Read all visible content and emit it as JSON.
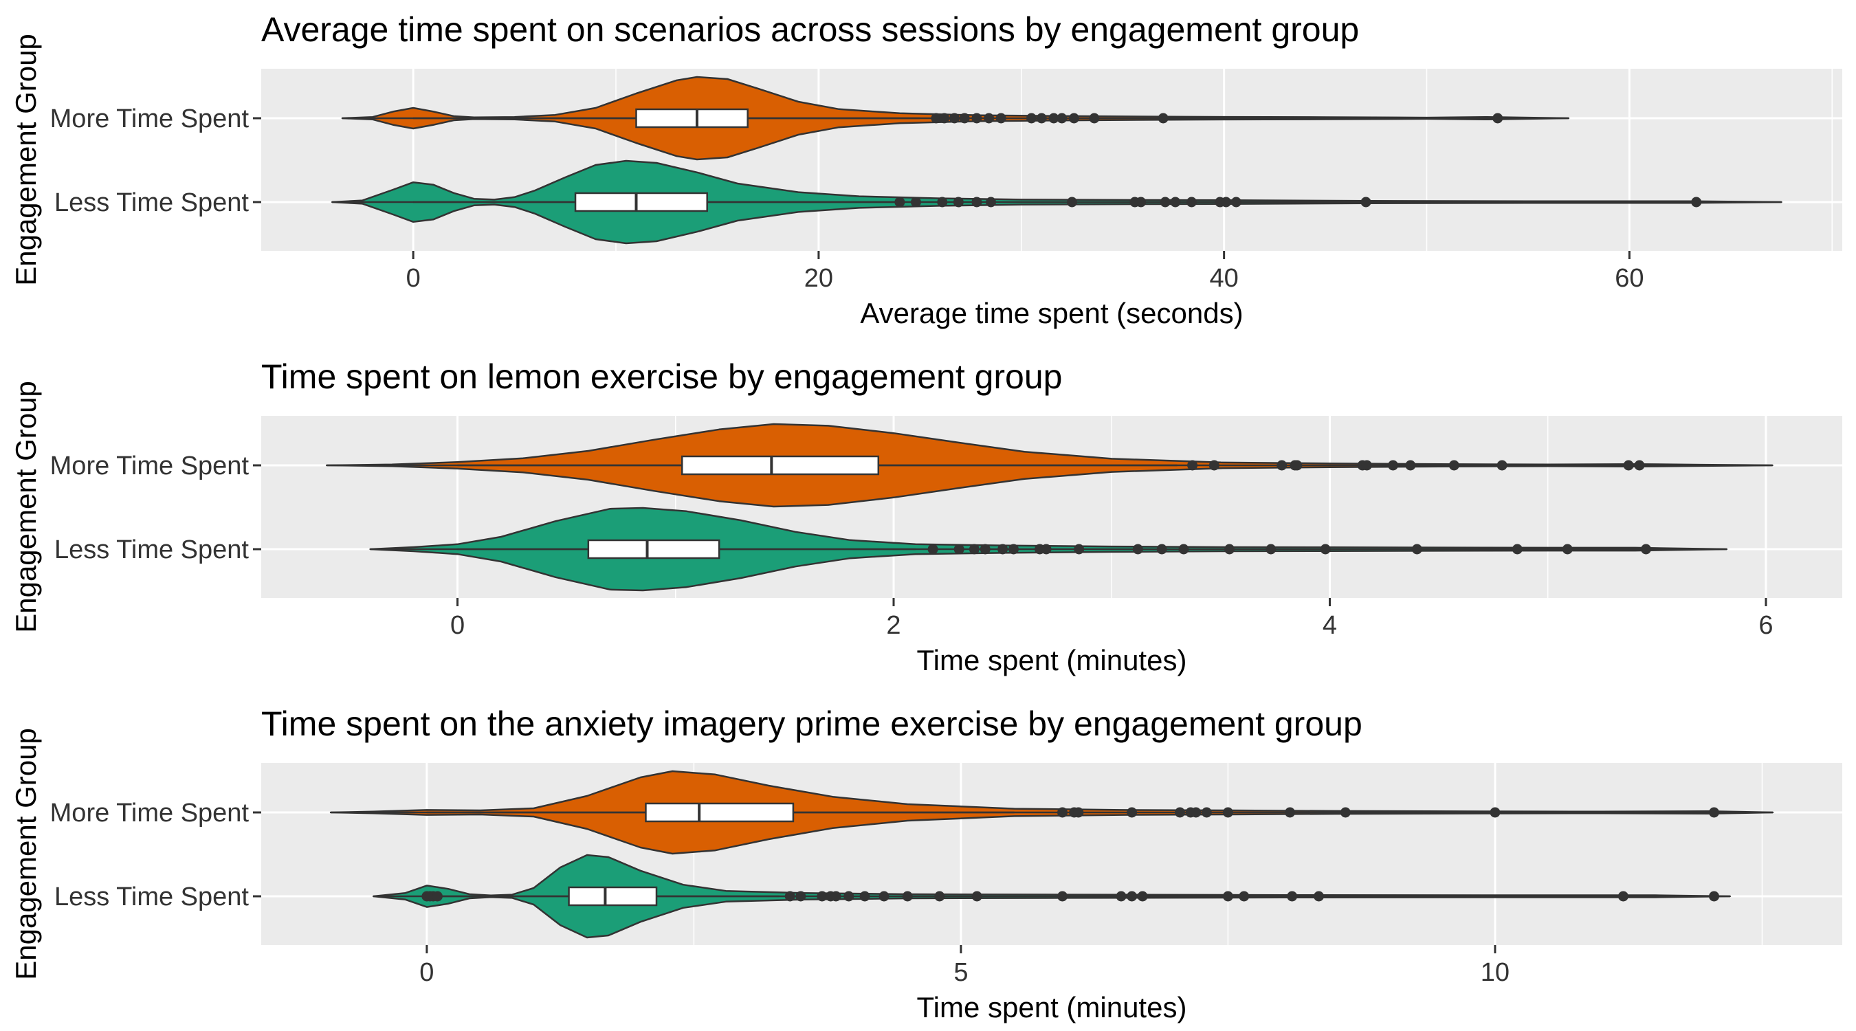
{
  "chart_data": [
    {
      "type": "violin",
      "title": "Average time spent on scenarios across sessions by engagement group",
      "xlabel": "Average time spent (seconds)",
      "ylabel": "Engagement Group",
      "xlim": [
        -7.5,
        70.5
      ],
      "xticks": [
        0,
        20,
        40,
        60
      ],
      "xtick_labels": [
        "0",
        "20",
        "40",
        "60"
      ],
      "categories": [
        "More Time Spent",
        "Less Time Spent"
      ],
      "grid": true,
      "legend": "none",
      "series": [
        {
          "name": "More Time Spent",
          "color": "#D95F02",
          "box": {
            "q1": 11,
            "median": 14,
            "q3": 16.5,
            "whisker_low": 0,
            "whisker_high": 25
          },
          "violin_range": [
            -3.5,
            57
          ],
          "density": [
            [
              -3.5,
              0
            ],
            [
              -2,
              0.03
            ],
            [
              -1,
              0.16
            ],
            [
              0,
              0.25
            ],
            [
              1,
              0.16
            ],
            [
              2,
              0.05
            ],
            [
              3,
              0.02
            ],
            [
              5,
              0.03
            ],
            [
              7,
              0.08
            ],
            [
              9,
              0.25
            ],
            [
              11,
              0.6
            ],
            [
              13,
              0.92
            ],
            [
              14,
              1.0
            ],
            [
              15.5,
              0.95
            ],
            [
              17,
              0.72
            ],
            [
              19,
              0.4
            ],
            [
              21,
              0.22
            ],
            [
              24,
              0.12
            ],
            [
              28,
              0.07
            ],
            [
              33,
              0.05
            ],
            [
              38,
              0.035
            ],
            [
              45,
              0.025
            ],
            [
              50,
              0.015
            ],
            [
              53,
              0.03
            ],
            [
              55,
              0.015
            ],
            [
              57,
              0
            ]
          ],
          "outliers": [
            25.8,
            26.2,
            26.7,
            27.2,
            27.8,
            28.4,
            29,
            30.5,
            31,
            31.6,
            32,
            32.6,
            33.6,
            37,
            53.5
          ]
        },
        {
          "name": "Less Time Spent",
          "color": "#1B9E77",
          "box": {
            "q1": 8,
            "median": 11,
            "q3": 14.5,
            "whisker_low": 0,
            "whisker_high": 24
          },
          "violin_range": [
            -4,
            67.5
          ],
          "density": [
            [
              -4,
              0
            ],
            [
              -2.5,
              0.04
            ],
            [
              -1,
              0.3
            ],
            [
              0,
              0.48
            ],
            [
              1,
              0.42
            ],
            [
              2,
              0.22
            ],
            [
              3,
              0.08
            ],
            [
              4,
              0.06
            ],
            [
              5,
              0.12
            ],
            [
              6,
              0.28
            ],
            [
              7.5,
              0.6
            ],
            [
              9,
              0.9
            ],
            [
              10.5,
              1.0
            ],
            [
              12,
              0.95
            ],
            [
              14,
              0.72
            ],
            [
              16,
              0.45
            ],
            [
              19,
              0.24
            ],
            [
              22,
              0.14
            ],
            [
              26,
              0.09
            ],
            [
              30,
              0.06
            ],
            [
              36,
              0.05
            ],
            [
              40,
              0.045
            ],
            [
              47,
              0.03
            ],
            [
              55,
              0.02
            ],
            [
              63,
              0.02
            ],
            [
              67.5,
              0
            ]
          ],
          "outliers": [
            24,
            24.8,
            26.1,
            26.9,
            27.8,
            28.5,
            32.5,
            35.6,
            35.9,
            37.1,
            37.6,
            38.4,
            39.8,
            40.1,
            40.6,
            47,
            63.3
          ]
        }
      ]
    },
    {
      "type": "violin",
      "title": "Time spent on lemon exercise by engagement group",
      "xlabel": "Time spent (minutes)",
      "ylabel": "Engagement Group",
      "xlim": [
        -0.9,
        6.35
      ],
      "xticks": [
        0,
        2,
        4,
        6
      ],
      "xtick_labels": [
        "0",
        "2",
        "4",
        "6"
      ],
      "categories": [
        "More Time Spent",
        "Less Time Spent"
      ],
      "grid": true,
      "legend": "none",
      "series": [
        {
          "name": "More Time Spent",
          "color": "#D95F02",
          "box": {
            "q1": 1.03,
            "median": 1.44,
            "q3": 1.93,
            "whisker_low": 0,
            "whisker_high": 3.3
          },
          "violin_range": [
            -0.6,
            6.03
          ],
          "density": [
            [
              -0.6,
              0
            ],
            [
              -0.3,
              0.02
            ],
            [
              0,
              0.08
            ],
            [
              0.3,
              0.17
            ],
            [
              0.6,
              0.35
            ],
            [
              0.9,
              0.62
            ],
            [
              1.2,
              0.87
            ],
            [
              1.45,
              1.0
            ],
            [
              1.7,
              0.96
            ],
            [
              2.0,
              0.78
            ],
            [
              2.3,
              0.55
            ],
            [
              2.6,
              0.33
            ],
            [
              3.0,
              0.16
            ],
            [
              3.5,
              0.07
            ],
            [
              4.0,
              0.045
            ],
            [
              4.5,
              0.03
            ],
            [
              5.0,
              0.02
            ],
            [
              5.4,
              0.03
            ],
            [
              5.7,
              0.015
            ],
            [
              6.03,
              0
            ]
          ],
          "outliers": [
            3.37,
            3.47,
            3.78,
            3.84,
            3.85,
            4.15,
            4.17,
            4.29,
            4.37,
            4.57,
            4.79,
            5.37,
            5.42
          ]
        },
        {
          "name": "Less Time Spent",
          "color": "#1B9E77",
          "box": {
            "q1": 0.6,
            "median": 0.87,
            "q3": 1.2,
            "whisker_low": 0,
            "whisker_high": 2.1
          },
          "violin_range": [
            -0.4,
            5.82
          ],
          "density": [
            [
              -0.4,
              0
            ],
            [
              -0.2,
              0.05
            ],
            [
              0,
              0.12
            ],
            [
              0.2,
              0.3
            ],
            [
              0.45,
              0.68
            ],
            [
              0.7,
              0.98
            ],
            [
              0.85,
              1.0
            ],
            [
              1.05,
              0.92
            ],
            [
              1.3,
              0.7
            ],
            [
              1.55,
              0.42
            ],
            [
              1.8,
              0.22
            ],
            [
              2.1,
              0.12
            ],
            [
              2.5,
              0.09
            ],
            [
              3.0,
              0.065
            ],
            [
              3.5,
              0.05
            ],
            [
              4.0,
              0.045
            ],
            [
              4.5,
              0.04
            ],
            [
              5.0,
              0.035
            ],
            [
              5.4,
              0.035
            ],
            [
              5.82,
              0
            ]
          ],
          "outliers": [
            2.18,
            2.3,
            2.37,
            2.42,
            2.5,
            2.55,
            2.67,
            2.7,
            2.85,
            3.12,
            3.23,
            3.33,
            3.54,
            3.73,
            3.98,
            4.4,
            4.86,
            5.09,
            5.45
          ]
        }
      ]
    },
    {
      "type": "violin",
      "title": "Time spent on the anxiety imagery prime exercise by engagement group",
      "xlabel": "Time spent (minutes)",
      "ylabel": "Engagement Group",
      "xlim": [
        -1.55,
        13.25
      ],
      "xticks": [
        0,
        5,
        10
      ],
      "xtick_labels": [
        "0",
        "5",
        "10"
      ],
      "categories": [
        "More Time Spent",
        "Less Time Spent"
      ],
      "grid": true,
      "legend": "none",
      "series": [
        {
          "name": "More Time Spent",
          "color": "#D95F02",
          "box": {
            "q1": 2.05,
            "median": 2.55,
            "q3": 3.43,
            "whisker_low": 0,
            "whisker_high": 5.5
          },
          "violin_range": [
            -0.9,
            12.6
          ],
          "density": [
            [
              -0.9,
              0
            ],
            [
              -0.5,
              0.02
            ],
            [
              0,
              0.06
            ],
            [
              0.5,
              0.05
            ],
            [
              1.0,
              0.1
            ],
            [
              1.5,
              0.4
            ],
            [
              2.0,
              0.85
            ],
            [
              2.3,
              1.0
            ],
            [
              2.7,
              0.92
            ],
            [
              3.2,
              0.65
            ],
            [
              3.8,
              0.38
            ],
            [
              4.5,
              0.2
            ],
            [
              5.5,
              0.09
            ],
            [
              6.5,
              0.06
            ],
            [
              7.5,
              0.05
            ],
            [
              8.5,
              0.035
            ],
            [
              10,
              0.025
            ],
            [
              11,
              0.02
            ],
            [
              12,
              0.03
            ],
            [
              12.6,
              0
            ]
          ],
          "outliers": [
            5.95,
            6.06,
            6.1,
            6.6,
            7.05,
            7.15,
            7.2,
            7.3,
            7.5,
            8.08,
            8.6,
            10.0,
            12.05
          ]
        },
        {
          "name": "Less Time Spent",
          "color": "#1B9E77",
          "box": {
            "q1": 1.33,
            "median": 1.67,
            "q3": 2.15,
            "whisker_low": 0,
            "whisker_high": 3.3
          },
          "violin_range": [
            -0.5,
            12.2
          ],
          "density": [
            [
              -0.5,
              0
            ],
            [
              -0.2,
              0.08
            ],
            [
              0,
              0.26
            ],
            [
              0.2,
              0.18
            ],
            [
              0.4,
              0.05
            ],
            [
              0.6,
              0.02
            ],
            [
              0.8,
              0.04
            ],
            [
              1.0,
              0.2
            ],
            [
              1.25,
              0.7
            ],
            [
              1.5,
              1.0
            ],
            [
              1.7,
              0.95
            ],
            [
              2.0,
              0.62
            ],
            [
              2.4,
              0.28
            ],
            [
              2.8,
              0.13
            ],
            [
              3.5,
              0.08
            ],
            [
              4.5,
              0.05
            ],
            [
              6,
              0.04
            ],
            [
              8,
              0.03
            ],
            [
              10,
              0.025
            ],
            [
              11.5,
              0.025
            ],
            [
              12.2,
              0
            ]
          ],
          "outliers": [
            0,
            0.03,
            0.06,
            0.1,
            3.4,
            3.5,
            3.7,
            3.78,
            3.83,
            3.95,
            4.1,
            4.28,
            4.5,
            4.8,
            5.15,
            5.95,
            6.5,
            6.6,
            6.7,
            7.5,
            7.65,
            8.1,
            8.35,
            11.2,
            12.05
          ]
        }
      ]
    }
  ]
}
